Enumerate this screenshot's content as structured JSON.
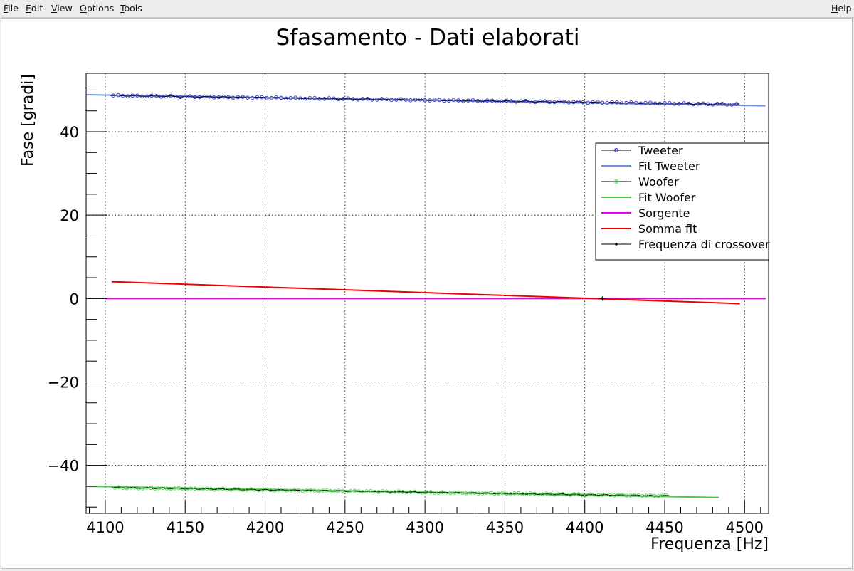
{
  "menubar": {
    "items": [
      {
        "id": "file",
        "label": "File",
        "underline": "F",
        "rest": "ile"
      },
      {
        "id": "edit",
        "label": "Edit",
        "underline": "E",
        "rest": "dit"
      },
      {
        "id": "view",
        "label": "View",
        "underline": "V",
        "rest": "iew"
      },
      {
        "id": "options",
        "label": "Options",
        "underline": "O",
        "rest": "ptions"
      },
      {
        "id": "tools",
        "label": "Tools",
        "underline": "T",
        "rest": "ools"
      }
    ],
    "help": {
      "label": "Help",
      "underline": "H",
      "rest": "elp"
    }
  },
  "chart_data": {
    "type": "scatter",
    "title": "Sfasamento - Dati elaborati",
    "xlabel": "Frequenza [Hz]",
    "ylabel": "Fase [gradi]",
    "xlim": [
      4088,
      4515
    ],
    "ylim": [
      -51.5,
      54
    ],
    "xticks": [
      4100,
      4150,
      4200,
      4250,
      4300,
      4350,
      4400,
      4450,
      4500
    ],
    "yticks": [
      -40,
      -20,
      0,
      20,
      40
    ],
    "ytick_labels": [
      "−40",
      "−20",
      "0",
      "20",
      "40"
    ],
    "grid": true,
    "legend_position": "top-right",
    "series": [
      {
        "name": "Tweeter",
        "kind": "points",
        "color": "#3a3acc",
        "marker": "circle",
        "x_range": [
          4105,
          4497
        ],
        "step": 3,
        "slope": -0.00543,
        "intercept_at_4100": 48.7
      },
      {
        "name": "Fit Tweeter",
        "kind": "line",
        "color": "#6b8fe0",
        "x_range": [
          4088,
          4513
        ],
        "slope": -0.00625,
        "intercept_at_4100": 48.8
      },
      {
        "name": "Woofer",
        "kind": "points",
        "color": "#55dd55",
        "marker": "circle",
        "x_range": [
          4106,
          4452
        ],
        "step": 2.5,
        "slope": -0.0057,
        "intercept_at_4100": -45.3
      },
      {
        "name": "Fit Woofer",
        "kind": "line",
        "color": "#44cc44",
        "x_range": [
          4088,
          4484
        ],
        "slope": -0.0068,
        "intercept_at_4100": -45.1
      },
      {
        "name": "Sorgente",
        "kind": "line",
        "color": "#ee00ee",
        "x_range": [
          4100,
          4513
        ],
        "slope": 0,
        "intercept_at_4100": 0
      },
      {
        "name": "Somma fit",
        "kind": "line",
        "color": "#ee0000",
        "x_range": [
          4104,
          4497
        ],
        "slope": -0.0134,
        "intercept_at_4100": 4.1
      },
      {
        "name": "Frequenza di crossover",
        "kind": "point",
        "color": "#000000",
        "x": 4411,
        "y": 0
      }
    ]
  }
}
